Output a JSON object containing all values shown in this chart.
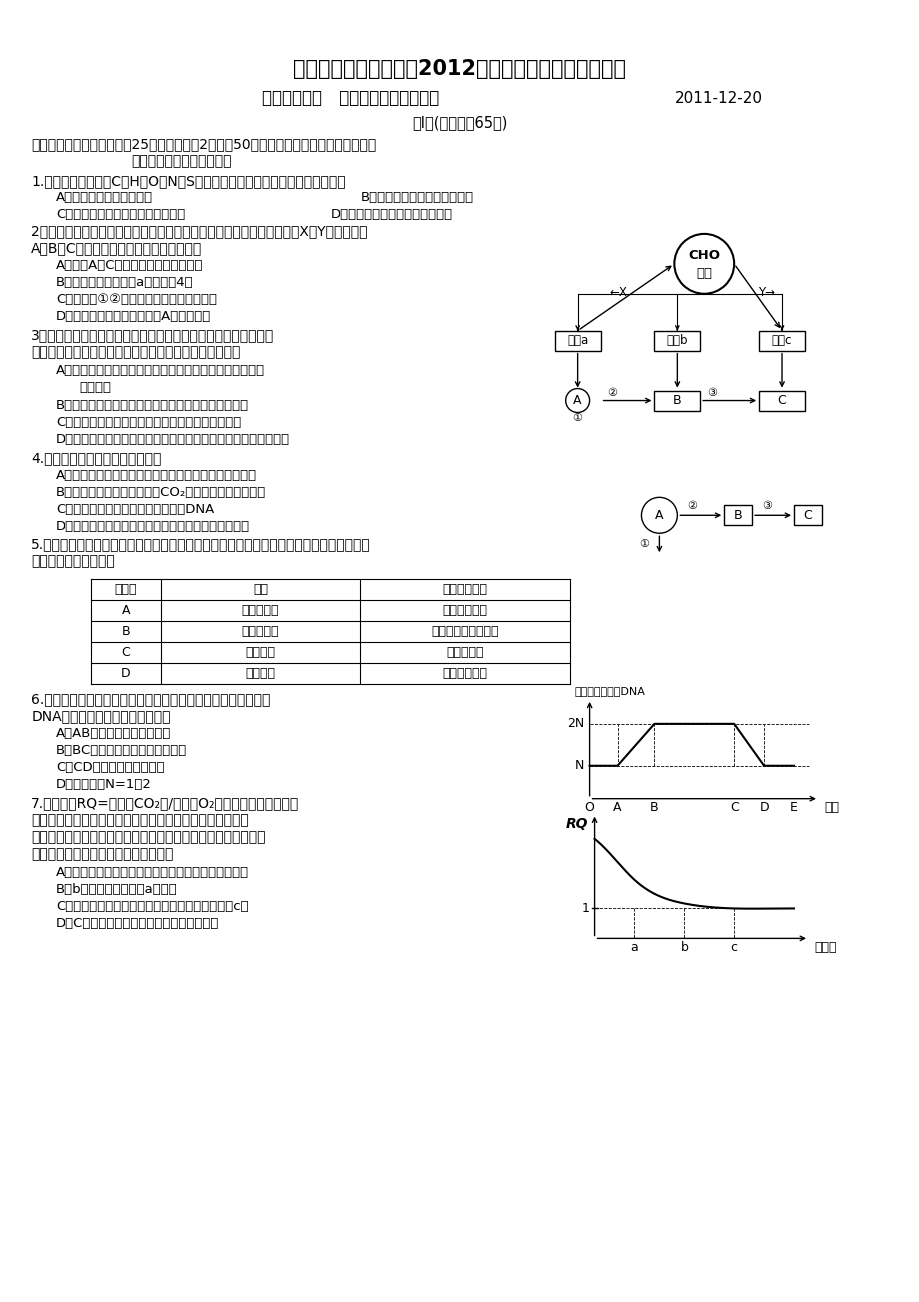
{
  "title": "江苏省新沂市第三中学2012届第二次自主检测生物试卷",
  "subtitle1": "命题：周立中   审定：高三生物备课组",
  "subtitle2": "2011-12-20",
  "bg_color": "#ffffff",
  "text_color": "#000000"
}
